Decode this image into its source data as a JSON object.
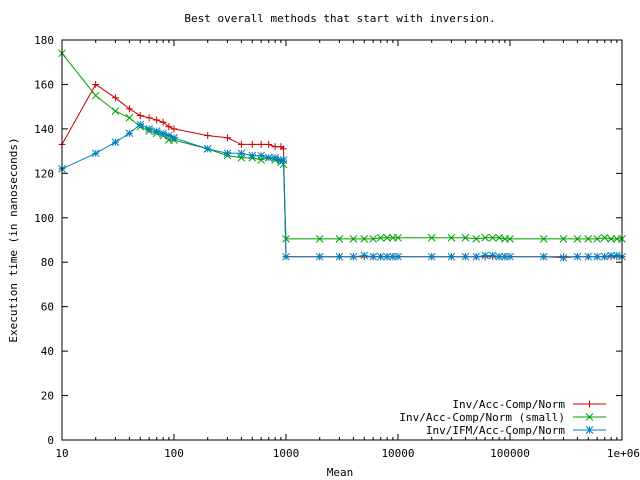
{
  "chart_data": {
    "type": "line",
    "title": "Best overall methods that start with inversion.",
    "xlabel": "Mean",
    "ylabel": "Execution time (in nanoseconds)",
    "xscale": "log",
    "xlim": [
      10,
      1000000
    ],
    "ylim": [
      0,
      180
    ],
    "grid": false,
    "legend_position": "bottom-right",
    "x_ticks": [
      10,
      100,
      1000,
      10000,
      100000,
      1000000
    ],
    "x_tick_labels": [
      "10",
      "100",
      "1000",
      "10000",
      "100000",
      "1e+06"
    ],
    "y_ticks": [
      0,
      20,
      40,
      60,
      80,
      100,
      120,
      140,
      160,
      180
    ],
    "y_tick_labels": [
      "0",
      "20",
      "40",
      "60",
      "80",
      "100",
      "120",
      "140",
      "160",
      "180"
    ],
    "series": [
      {
        "name": "Inv/Acc-Comp/Norm",
        "color": "#cc0000",
        "marker": "plus",
        "points": [
          [
            10,
            133
          ],
          [
            20,
            160
          ],
          [
            30,
            154
          ],
          [
            40,
            149
          ],
          [
            50,
            146
          ],
          [
            60,
            145
          ],
          [
            70,
            144
          ],
          [
            80,
            143
          ],
          [
            90,
            141
          ],
          [
            100,
            140
          ],
          [
            200,
            137
          ],
          [
            300,
            136
          ],
          [
            400,
            133
          ],
          [
            500,
            133
          ],
          [
            600,
            133
          ],
          [
            700,
            133
          ],
          [
            800,
            132
          ],
          [
            900,
            132
          ],
          [
            950,
            131
          ],
          [
            1000,
            82.5
          ],
          [
            2000,
            82.5
          ],
          [
            3000,
            82.5
          ],
          [
            4000,
            82.5
          ],
          [
            5000,
            82.5
          ],
          [
            6000,
            82.5
          ],
          [
            7000,
            82.5
          ],
          [
            8000,
            82.5
          ],
          [
            9000,
            82.5
          ],
          [
            10000,
            82.5
          ],
          [
            20000,
            82.5
          ],
          [
            30000,
            82.5
          ],
          [
            40000,
            82.5
          ],
          [
            50000,
            82.5
          ],
          [
            60000,
            82.5
          ],
          [
            70000,
            82.5
          ],
          [
            80000,
            82.5
          ],
          [
            90000,
            82.5
          ],
          [
            100000,
            82.5
          ],
          [
            200000,
            82.5
          ],
          [
            300000,
            82.5
          ],
          [
            400000,
            82.5
          ],
          [
            500000,
            82.5
          ],
          [
            600000,
            82.5
          ],
          [
            700000,
            82.5
          ],
          [
            800000,
            82.5
          ],
          [
            900000,
            82.5
          ],
          [
            1000000,
            82.5
          ]
        ]
      },
      {
        "name": "Inv/Acc-Comp/Norm (small)",
        "color": "#00a000",
        "marker": "cross",
        "points": [
          [
            10,
            174
          ],
          [
            20,
            155
          ],
          [
            30,
            148
          ],
          [
            40,
            145
          ],
          [
            50,
            141
          ],
          [
            60,
            139
          ],
          [
            70,
            138
          ],
          [
            80,
            137
          ],
          [
            90,
            135
          ],
          [
            100,
            135
          ],
          [
            200,
            131
          ],
          [
            300,
            128
          ],
          [
            400,
            127
          ],
          [
            500,
            127
          ],
          [
            600,
            126
          ],
          [
            700,
            127
          ],
          [
            800,
            126
          ],
          [
            900,
            125
          ],
          [
            950,
            124
          ],
          [
            1000,
            90.5
          ],
          [
            2000,
            90.5
          ],
          [
            3000,
            90.5
          ],
          [
            4000,
            90.5
          ],
          [
            5000,
            90.5
          ],
          [
            6000,
            90.5
          ],
          [
            7000,
            91
          ],
          [
            8000,
            91
          ],
          [
            9000,
            91
          ],
          [
            10000,
            91
          ],
          [
            20000,
            91
          ],
          [
            30000,
            91
          ],
          [
            40000,
            91
          ],
          [
            50000,
            90.5
          ],
          [
            60000,
            91
          ],
          [
            70000,
            91
          ],
          [
            80000,
            91
          ],
          [
            90000,
            90.5
          ],
          [
            100000,
            90.5
          ],
          [
            200000,
            90.5
          ],
          [
            300000,
            90.5
          ],
          [
            400000,
            90.5
          ],
          [
            500000,
            90.5
          ],
          [
            600000,
            90.5
          ],
          [
            700000,
            91
          ],
          [
            800000,
            90.5
          ],
          [
            900000,
            90.5
          ],
          [
            1000000,
            90.5
          ]
        ]
      },
      {
        "name": "Inv/IFM/Acc-Comp/Norm",
        "color": "#0080c0",
        "marker": "star",
        "points": [
          [
            10,
            122
          ],
          [
            20,
            129
          ],
          [
            30,
            134
          ],
          [
            40,
            138
          ],
          [
            50,
            142
          ],
          [
            60,
            140
          ],
          [
            70,
            139
          ],
          [
            80,
            138
          ],
          [
            90,
            137
          ],
          [
            100,
            136
          ],
          [
            200,
            131
          ],
          [
            300,
            129
          ],
          [
            400,
            129
          ],
          [
            500,
            128
          ],
          [
            600,
            128
          ],
          [
            700,
            127
          ],
          [
            800,
            127
          ],
          [
            900,
            126
          ],
          [
            950,
            126
          ],
          [
            1000,
            82.5
          ],
          [
            2000,
            82.5
          ],
          [
            3000,
            82.5
          ],
          [
            4000,
            82.5
          ],
          [
            5000,
            83
          ],
          [
            6000,
            82.5
          ],
          [
            7000,
            82.5
          ],
          [
            8000,
            82.5
          ],
          [
            9000,
            82.5
          ],
          [
            10000,
            82.5
          ],
          [
            20000,
            82.5
          ],
          [
            30000,
            82.5
          ],
          [
            40000,
            82.5
          ],
          [
            50000,
            82.5
          ],
          [
            60000,
            83
          ],
          [
            70000,
            83
          ],
          [
            80000,
            82.5
          ],
          [
            90000,
            82.5
          ],
          [
            100000,
            82.5
          ],
          [
            200000,
            82.5
          ],
          [
            300000,
            82
          ],
          [
            400000,
            82.5
          ],
          [
            500000,
            82.5
          ],
          [
            600000,
            82.5
          ],
          [
            700000,
            82.5
          ],
          [
            800000,
            83
          ],
          [
            900000,
            83
          ],
          [
            1000000,
            82.5
          ]
        ]
      }
    ]
  }
}
